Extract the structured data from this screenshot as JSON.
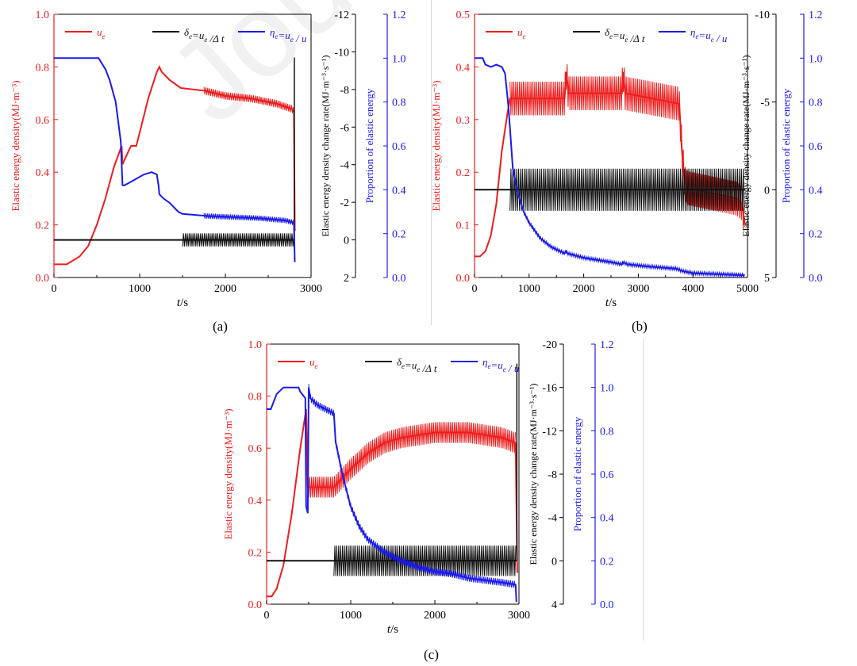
{
  "watermark": "Journal Pre-proof",
  "colors": {
    "red": "#ee1c1c",
    "black": "#111111",
    "blue": "#1a1aee"
  },
  "chart_data": [
    {
      "id": "a",
      "type": "line",
      "panel_label": "(a)",
      "xlabel_italic": "t",
      "xlabel_unit": "/s",
      "xlim": [
        0,
        3000
      ],
      "x_ticks": [
        0,
        1000,
        2000,
        3000
      ],
      "left_axis": {
        "label": "Elastic energy density(MJ·m⁻³)",
        "lim": [
          0,
          1.0
        ],
        "ticks": [
          0.0,
          0.2,
          0.4,
          0.6,
          0.8,
          1.0
        ],
        "tick_labels": [
          "0.0",
          "0.2",
          "0.4",
          "0.6",
          "0.8",
          "1.0"
        ],
        "color": "#ee1c1c"
      },
      "mid_axis": {
        "label": "Elastic energy density change rate(MJ·m⁻³·s⁻¹)",
        "lim": [
          2,
          -12
        ],
        "ticks": [
          2,
          0,
          -2,
          -4,
          -6,
          -8,
          -10,
          -12
        ],
        "tick_labels": [
          "2",
          "0",
          "-2",
          "-4",
          "-6",
          "-8",
          "-10",
          "-12"
        ],
        "color": "#111111"
      },
      "right_axis": {
        "label": "Proportion of elastic energy",
        "lim": [
          0,
          1.2
        ],
        "ticks": [
          0.0,
          0.2,
          0.4,
          0.6,
          0.8,
          1.0,
          1.2
        ],
        "tick_labels": [
          "0.0",
          "0.2",
          "0.4",
          "0.6",
          "0.8",
          "1.0",
          "1.2"
        ],
        "color": "#1a1aee"
      },
      "legend": [
        {
          "color": "#ee1c1c",
          "text": "u",
          "sub": "e",
          "rest": ""
        },
        {
          "color": "#111111",
          "text": "δ",
          "sub": "e",
          "rest": "=u",
          "sub2": "e",
          "rest2": " /Δ t"
        },
        {
          "color": "#1a1aee",
          "text": "η",
          "sub": "e",
          "rest": "=u",
          "sub2": "e",
          "rest2": " / u"
        }
      ],
      "series": [
        {
          "name": "u_e",
          "axis": "left",
          "color": "#ee1c1c",
          "points": [
            [
              0,
              0.05
            ],
            [
              150,
              0.05
            ],
            [
              300,
              0.08
            ],
            [
              400,
              0.12
            ],
            [
              500,
              0.2
            ],
            [
              600,
              0.3
            ],
            [
              700,
              0.42
            ],
            [
              790,
              0.5
            ],
            [
              800,
              0.43
            ],
            [
              870,
              0.48
            ],
            [
              900,
              0.5
            ],
            [
              960,
              0.5
            ],
            [
              1000,
              0.55
            ],
            [
              1100,
              0.68
            ],
            [
              1200,
              0.78
            ],
            [
              1230,
              0.8
            ],
            [
              1260,
              0.78
            ],
            [
              1350,
              0.75
            ],
            [
              1480,
              0.72
            ],
            [
              1750,
              0.71
            ],
            [
              2000,
              0.69
            ],
            [
              2300,
              0.68
            ],
            [
              2600,
              0.66
            ],
            [
              2780,
              0.64
            ],
            [
              2800,
              0.63
            ],
            [
              2810,
              0.18
            ],
            [
              2820,
              0.18
            ]
          ],
          "band": {
            "x0": 1750,
            "x1": 2800,
            "amp": 0.014
          }
        },
        {
          "name": "delta_e",
          "axis": "mid",
          "color": "#111111",
          "points": [
            [
              0,
              0
            ],
            [
              1500,
              0
            ],
            [
              1750,
              0
            ],
            [
              2800,
              0
            ],
            [
              2810,
              0
            ]
          ],
          "band": {
            "x0": 1500,
            "x1": 2800,
            "amp": 0.35
          },
          "spike": {
            "x": 2805,
            "from": 0,
            "to": -9.7
          }
        },
        {
          "name": "eta_e",
          "axis": "right",
          "color": "#1a1aee",
          "points": [
            [
              0,
              1.0
            ],
            [
              520,
              1.0
            ],
            [
              600,
              0.95
            ],
            [
              650,
              0.9
            ],
            [
              720,
              0.8
            ],
            [
              780,
              0.62
            ],
            [
              800,
              0.42
            ],
            [
              820,
              0.42
            ],
            [
              870,
              0.43
            ],
            [
              960,
              0.45
            ],
            [
              1050,
              0.47
            ],
            [
              1140,
              0.48
            ],
            [
              1200,
              0.47
            ],
            [
              1220,
              0.42
            ],
            [
              1230,
              0.38
            ],
            [
              1280,
              0.36
            ],
            [
              1350,
              0.34
            ],
            [
              1450,
              0.3
            ],
            [
              1500,
              0.29
            ],
            [
              1800,
              0.28
            ],
            [
              2100,
              0.275
            ],
            [
              2400,
              0.27
            ],
            [
              2700,
              0.26
            ],
            [
              2800,
              0.25
            ],
            [
              2810,
              0.07
            ]
          ],
          "band": {
            "x0": 1750,
            "x1": 2800,
            "amp": 0.012
          }
        }
      ]
    },
    {
      "id": "b",
      "type": "line",
      "panel_label": "(b)",
      "xlabel_italic": "t",
      "xlabel_unit": "/s",
      "xlim": [
        0,
        5000
      ],
      "x_ticks": [
        0,
        1000,
        2000,
        3000,
        4000,
        5000
      ],
      "left_axis": {
        "label": "Elastic energy density(MJ·m⁻³)",
        "lim": [
          0,
          0.5
        ],
        "ticks": [
          0.0,
          0.1,
          0.2,
          0.3,
          0.4,
          0.5
        ],
        "tick_labels": [
          "0.0",
          "0.1",
          "0.2",
          "0.3",
          "0.4",
          "0.5"
        ],
        "color": "#ee1c1c"
      },
      "mid_axis": {
        "label": "Elastic energy density change rate(MJ·m⁻³·s⁻¹)",
        "lim": [
          5,
          -10
        ],
        "ticks": [
          5,
          0,
          -5,
          -10
        ],
        "tick_labels": [
          "5",
          "0",
          "-5",
          "-10"
        ],
        "color": "#111111"
      },
      "right_axis": {
        "label": "Proportion of elastic energy",
        "lim": [
          0,
          1.2
        ],
        "ticks": [
          0.0,
          0.2,
          0.4,
          0.6,
          0.8,
          1.0,
          1.2
        ],
        "tick_labels": [
          "0.0",
          "0.2",
          "0.4",
          "0.6",
          "0.8",
          "1.0",
          "1.2"
        ],
        "color": "#1a1aee"
      },
      "legend": [
        {
          "color": "#ee1c1c",
          "text": "u",
          "sub": "e",
          "rest": ""
        },
        {
          "color": "#111111",
          "text": "δ",
          "sub": "e",
          "rest": "=u",
          "sub2": "e",
          "rest2": " /Δ t"
        },
        {
          "color": "#1a1aee",
          "text": "η",
          "sub": "e",
          "rest": "=u",
          "sub2": "e",
          "rest2": " / u"
        }
      ],
      "series": [
        {
          "name": "u_e",
          "axis": "left",
          "color": "#ee1c1c",
          "points": [
            [
              0,
              0.04
            ],
            [
              100,
              0.04
            ],
            [
              200,
              0.05
            ],
            [
              300,
              0.08
            ],
            [
              400,
              0.14
            ],
            [
              500,
              0.24
            ],
            [
              600,
              0.31
            ],
            [
              650,
              0.34
            ],
            [
              1650,
              0.34
            ],
            [
              1680,
              0.39
            ],
            [
              1720,
              0.35
            ],
            [
              2700,
              0.35
            ],
            [
              2720,
              0.39
            ],
            [
              2760,
              0.35
            ],
            [
              3750,
              0.33
            ],
            [
              3800,
              0.24
            ],
            [
              3850,
              0.18
            ],
            [
              3900,
              0.17
            ],
            [
              4800,
              0.15
            ],
            [
              4900,
              0.14
            ],
            [
              4950,
              0.1
            ]
          ],
          "band": {
            "x0": 650,
            "x1": 4950,
            "amp": 0.032
          }
        },
        {
          "name": "delta_e",
          "axis": "mid",
          "color": "#111111",
          "points": [
            [
              0,
              0
            ],
            [
              600,
              0
            ],
            [
              4950,
              0
            ]
          ],
          "band": {
            "x0": 650,
            "x1": 4950,
            "amp": 1.2
          }
        },
        {
          "name": "eta_e",
          "axis": "right",
          "color": "#1a1aee",
          "points": [
            [
              0,
              1.0
            ],
            [
              150,
              1.0
            ],
            [
              200,
              0.97
            ],
            [
              300,
              0.96
            ],
            [
              400,
              0.97
            ],
            [
              500,
              0.96
            ],
            [
              560,
              0.93
            ],
            [
              620,
              0.78
            ],
            [
              650,
              0.68
            ],
            [
              700,
              0.5
            ],
            [
              800,
              0.38
            ],
            [
              900,
              0.3
            ],
            [
              1000,
              0.25
            ],
            [
              1200,
              0.18
            ],
            [
              1400,
              0.14
            ],
            [
              1650,
              0.11
            ],
            [
              1680,
              0.12
            ],
            [
              1700,
              0.11
            ],
            [
              2000,
              0.09
            ],
            [
              2500,
              0.07
            ],
            [
              2700,
              0.06
            ],
            [
              2720,
              0.07
            ],
            [
              2800,
              0.06
            ],
            [
              3200,
              0.05
            ],
            [
              3700,
              0.04
            ],
            [
              3800,
              0.03
            ],
            [
              4000,
              0.02
            ],
            [
              4500,
              0.015
            ],
            [
              4950,
              0.01
            ]
          ],
          "band": {
            "x0": 650,
            "x1": 4950,
            "amp": 0.008
          }
        }
      ]
    },
    {
      "id": "c",
      "type": "line",
      "panel_label": "(c)",
      "xlabel_italic": "t",
      "xlabel_unit": "/s",
      "xlim": [
        0,
        3000
      ],
      "x_ticks": [
        0,
        1000,
        2000,
        3000
      ],
      "left_axis": {
        "label": "Elastic energy density(MJ·m⁻³)",
        "lim": [
          0,
          1.0
        ],
        "ticks": [
          0.0,
          0.2,
          0.4,
          0.6,
          0.8,
          1.0
        ],
        "tick_labels": [
          "0.0",
          "0.2",
          "0.4",
          "0.6",
          "0.8",
          "1.0"
        ],
        "color": "#ee1c1c"
      },
      "mid_axis": {
        "label": "Elastic energy density change rate(MJ·m⁻³·s⁻¹)",
        "lim": [
          4,
          -20
        ],
        "ticks": [
          4,
          0,
          -4,
          -8,
          -12,
          -16,
          -20
        ],
        "tick_labels": [
          "4",
          "0",
          "-4",
          "-8",
          "-12",
          "-16",
          "-20"
        ],
        "color": "#111111"
      },
      "right_axis": {
        "label": "Proportion of elastic energy",
        "lim": [
          0,
          1.2
        ],
        "ticks": [
          0.0,
          0.2,
          0.4,
          0.6,
          0.8,
          1.0,
          1.2
        ],
        "tick_labels": [
          "0.0",
          "0.2",
          "0.4",
          "0.6",
          "0.8",
          "1.0",
          "1.2"
        ],
        "color": "#1a1aee"
      },
      "legend": [
        {
          "color": "#ee1c1c",
          "text": "u",
          "sub": "e",
          "rest": ""
        },
        {
          "color": "#111111",
          "text": "δ",
          "sub": "e",
          "rest": "=u",
          "sub2": "e",
          "rest2": " /Δ t"
        },
        {
          "color": "#1a1aee",
          "text": "η",
          "sub": "e",
          "rest": "=u",
          "sub2": "e",
          "rest2": " / u"
        }
      ],
      "series": [
        {
          "name": "u_e",
          "axis": "left",
          "color": "#ee1c1c",
          "points": [
            [
              0,
              0.03
            ],
            [
              60,
              0.03
            ],
            [
              120,
              0.06
            ],
            [
              200,
              0.15
            ],
            [
              300,
              0.35
            ],
            [
              400,
              0.6
            ],
            [
              470,
              0.75
            ],
            [
              490,
              0.45
            ],
            [
              800,
              0.45
            ],
            [
              1000,
              0.52
            ],
            [
              1200,
              0.58
            ],
            [
              1400,
              0.62
            ],
            [
              1600,
              0.64
            ],
            [
              1800,
              0.65
            ],
            [
              2000,
              0.66
            ],
            [
              2200,
              0.66
            ],
            [
              2400,
              0.66
            ],
            [
              2600,
              0.65
            ],
            [
              2800,
              0.64
            ],
            [
              2960,
              0.62
            ],
            [
              2980,
              0.12
            ]
          ],
          "band": {
            "x0": 490,
            "x1": 2960,
            "amp": 0.04
          }
        },
        {
          "name": "delta_e",
          "axis": "mid",
          "color": "#111111",
          "points": [
            [
              0,
              0
            ],
            [
              800,
              0
            ],
            [
              2970,
              0
            ]
          ],
          "band": {
            "x0": 800,
            "x1": 2970,
            "amp": 1.4
          },
          "spike": {
            "x": 2975,
            "from": 0,
            "to": -18.2
          }
        },
        {
          "name": "eta_e",
          "axis": "right",
          "color": "#1a1aee",
          "points": [
            [
              0,
              0.9
            ],
            [
              50,
              0.9
            ],
            [
              120,
              0.97
            ],
            [
              200,
              1.0
            ],
            [
              380,
              1.0
            ],
            [
              400,
              0.98
            ],
            [
              460,
              0.95
            ],
            [
              470,
              0.45
            ],
            [
              490,
              0.42
            ],
            [
              500,
              1.0
            ],
            [
              520,
              0.95
            ],
            [
              600,
              0.92
            ],
            [
              700,
              0.9
            ],
            [
              800,
              0.88
            ],
            [
              820,
              0.75
            ],
            [
              900,
              0.6
            ],
            [
              1000,
              0.45
            ],
            [
              1100,
              0.36
            ],
            [
              1200,
              0.3
            ],
            [
              1400,
              0.24
            ],
            [
              1600,
              0.2
            ],
            [
              1800,
              0.17
            ],
            [
              2000,
              0.15
            ],
            [
              2200,
              0.14
            ],
            [
              2400,
              0.12
            ],
            [
              2600,
              0.11
            ],
            [
              2800,
              0.1
            ],
            [
              2960,
              0.09
            ],
            [
              2970,
              0.01
            ]
          ],
          "band": {
            "x0": 500,
            "x1": 2960,
            "amp": 0.016
          }
        }
      ]
    }
  ]
}
